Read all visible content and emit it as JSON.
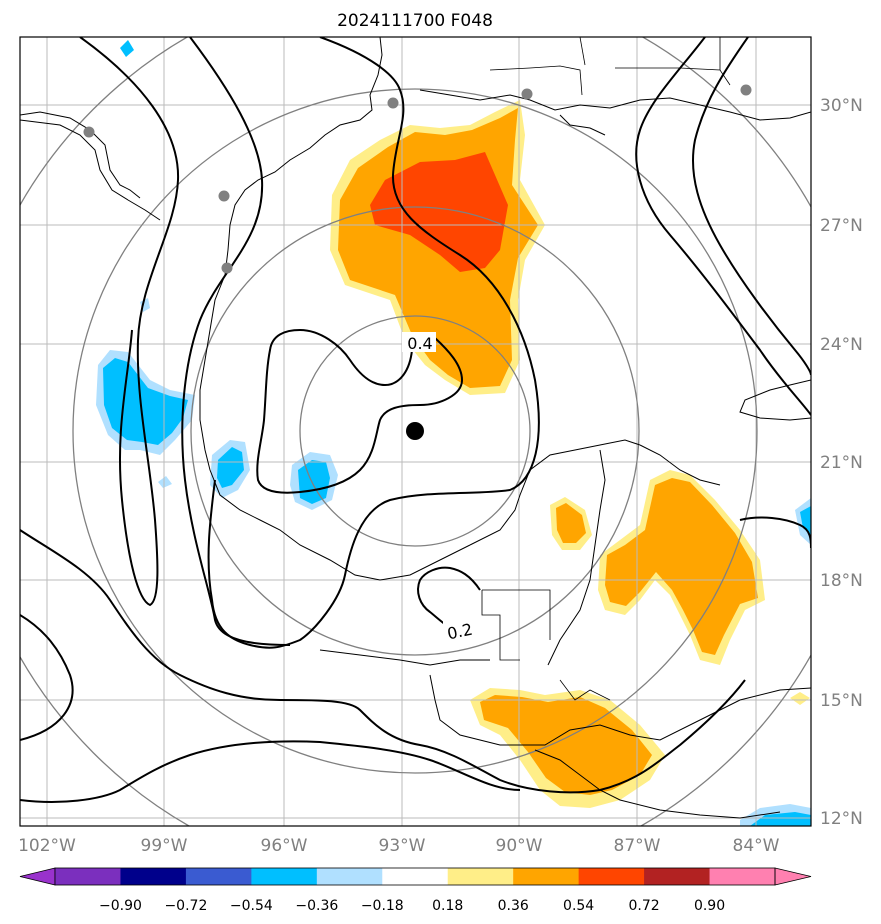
{
  "title": "2024111700 F048",
  "map": {
    "lon_labels": [
      "102°W",
      "99°W",
      "96°W",
      "93°W",
      "90°W",
      "87°W",
      "84°W"
    ],
    "lat_labels": [
      "30°N",
      "27°N",
      "24°N",
      "21°N",
      "18°N",
      "15°N",
      "12°N"
    ],
    "contour_labels": [
      "0.4",
      "0.2"
    ],
    "colors": {
      "grid": "#bbbbbb",
      "tick_label": "#808080",
      "range_ring": "#808080",
      "contour": "#000000",
      "station": "#808080",
      "center_marker": "#000000"
    }
  },
  "colorbar": {
    "tick_labels": [
      "−0.90",
      "−0.72",
      "−0.54",
      "−0.36",
      "−0.18",
      "0.18",
      "0.36",
      "0.54",
      "0.72",
      "0.90"
    ],
    "under_color": "#9932cc",
    "over_color": "#ff80b0",
    "bin_colors": [
      "#7b2fbe",
      "#00008b",
      "#3a5bd1",
      "#00bfff",
      "#b0e0ff",
      "#ffffff",
      "#ffee88",
      "#ffa500",
      "#ff4500",
      "#b22222"
    ],
    "extra_bin": "#ff80b0"
  }
}
